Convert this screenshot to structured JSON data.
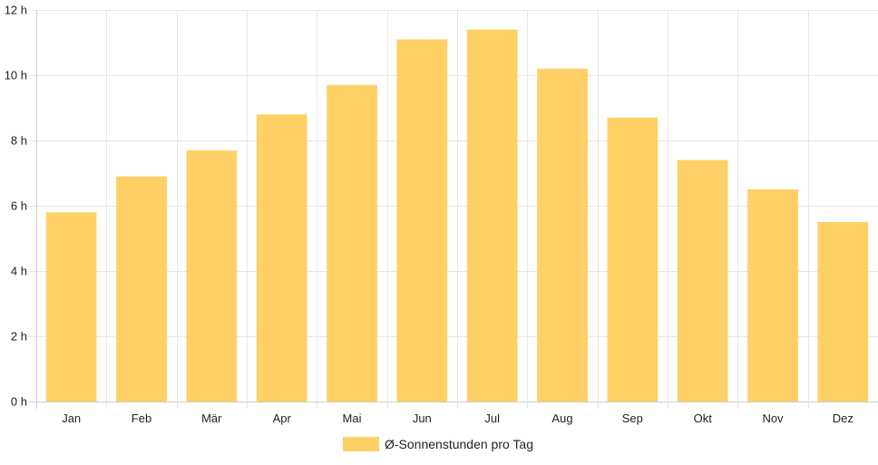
{
  "chart_data": {
    "type": "bar",
    "categories": [
      "Jan",
      "Feb",
      "Mär",
      "Apr",
      "Mai",
      "Jun",
      "Jul",
      "Aug",
      "Sep",
      "Okt",
      "Nov",
      "Dez"
    ],
    "series": [
      {
        "name": "Ø-Sonnenstunden pro Tag",
        "values": [
          5.8,
          6.9,
          7.7,
          8.8,
          9.7,
          11.1,
          11.4,
          10.2,
          8.7,
          7.4,
          6.5,
          5.5
        ],
        "color": "#fed066"
      }
    ],
    "y_unit": "h",
    "ylim": [
      0,
      12
    ],
    "y_ticks": [
      0,
      2,
      4,
      6,
      8,
      10,
      12
    ],
    "grid": true,
    "legend_position": "bottom"
  }
}
